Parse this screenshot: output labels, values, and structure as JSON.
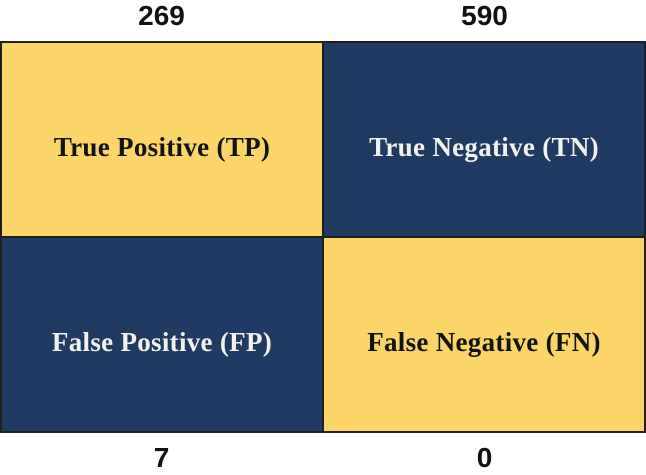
{
  "colors": {
    "gold": "#FBD567",
    "navy": "#1F3A63",
    "border": "#1F1F1F",
    "text_on_gold": "#121212",
    "text_on_navy": "#F2F1ED",
    "count_text": "#111111",
    "background": "#FFFFFF"
  },
  "matrix": {
    "cells": [
      {
        "id": "tp",
        "label": "True Positive (TP)",
        "count": "269",
        "bg": "gold"
      },
      {
        "id": "tn",
        "label": "True Negative (TN)",
        "count": "590",
        "bg": "navy"
      },
      {
        "id": "fp",
        "label": "False Positive (FP)",
        "count": "7",
        "bg": "navy"
      },
      {
        "id": "fn",
        "label": "False Negative (FN)",
        "count": "0",
        "bg": "gold"
      }
    ]
  },
  "chart_data": {
    "type": "heatmap",
    "layout": "2x2 confusion-matrix quadrant figure; counts for the top row are printed above the grid, counts for the bottom row below the grid",
    "rows": [
      [
        "True Positive (TP)",
        "True Negative (TN)"
      ],
      [
        "False Positive (FP)",
        "False Negative (FN)"
      ]
    ],
    "cells": [
      {
        "row": 0,
        "col": 0,
        "label": "True Positive (TP)",
        "value": 269,
        "color": "#FBD567"
      },
      {
        "row": 0,
        "col": 1,
        "label": "True Negative (TN)",
        "value": 590,
        "color": "#1F3A63"
      },
      {
        "row": 1,
        "col": 0,
        "label": "False Positive (FP)",
        "value": 7,
        "color": "#1F3A63"
      },
      {
        "row": 1,
        "col": 1,
        "label": "False Negative (FN)",
        "value": 0,
        "color": "#FBD567"
      }
    ],
    "title": "",
    "legend": "none",
    "grid": "2px dark border and dividers"
  }
}
